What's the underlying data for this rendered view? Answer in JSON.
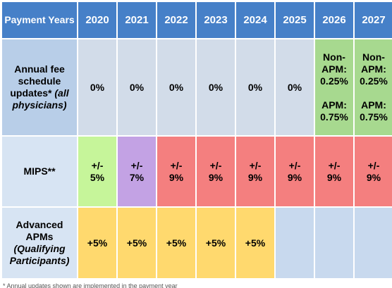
{
  "header": {
    "corner": "Payment Years",
    "years": [
      "2020",
      "2021",
      "2022",
      "2023",
      "2024",
      "2025",
      "2026",
      "2027"
    ]
  },
  "rows": {
    "fee": {
      "label_main": "Annual fee schedule updates*",
      "label_italic": "(all physicians)",
      "values": [
        "0%",
        "0%",
        "0%",
        "0%",
        "0%",
        "0%"
      ],
      "nonapm_label": "Non-APM:",
      "nonapm_value": "0.25%",
      "apm_label": "APM:",
      "apm_value": "0.75%"
    },
    "mips": {
      "label": "MIPS**",
      "values": [
        "+/- 5%",
        "+/- 7%",
        "+/- 9%",
        "+/- 9%",
        "+/- 9%",
        "+/- 9%",
        "+/- 9%",
        "+/- 9%"
      ]
    },
    "apms": {
      "label_main": "Advanced APMs",
      "label_italic": "(Qualifying Participants)",
      "values": [
        "+5%",
        "+5%",
        "+5%",
        "+5%",
        "+5%",
        "",
        "",
        ""
      ]
    }
  },
  "footnote": "* Annual updates shown are implemented in the payment year",
  "colors": {
    "header": "#4680c8",
    "row_label": "#b8cee8",
    "fee_cells": "#d2dce9",
    "fee_split": "#a7d98f",
    "mips_2020": "#c6f59a",
    "mips_2021": "#c3a2e4",
    "mips_other": "#f47f7f",
    "apm_bonus": "#ffd96e",
    "apm_none": "#c8d9ee"
  }
}
